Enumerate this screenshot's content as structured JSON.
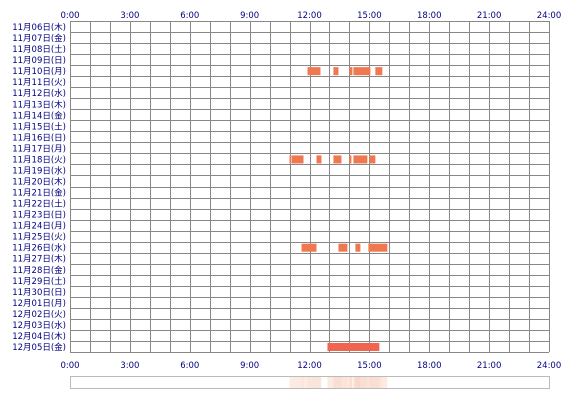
{
  "chart_data": {
    "type": "heatmap",
    "x_ticks": [
      "0:00",
      "3:00",
      "6:00",
      "9:00",
      "12:00",
      "15:00",
      "18:00",
      "21:00",
      "24:00"
    ],
    "xlim_hours": [
      0,
      24
    ],
    "x_grid_step_hours": 1,
    "rows": [
      "11月06日(木)",
      "11月07日(金)",
      "11月08日(土)",
      "11月09日(日)",
      "11月10日(月)",
      "11月11日(火)",
      "11月12日(水)",
      "11月13日(木)",
      "11月14日(金)",
      "11月15日(土)",
      "11月16日(日)",
      "11月17日(月)",
      "11月18日(火)",
      "11月19日(水)",
      "11月20日(木)",
      "11月21日(金)",
      "11月22日(土)",
      "11月23日(日)",
      "11月24日(月)",
      "11月25日(火)",
      "11月26日(水)",
      "11月27日(木)",
      "11月28日(金)",
      "11月29日(土)",
      "11月30日(日)",
      "12月01日(月)",
      "12月02日(火)",
      "12月03日(水)",
      "12月04日(木)",
      "12月05日(金)"
    ],
    "events": [
      {
        "row": 4,
        "start": 11.9,
        "end": 12.55
      },
      {
        "row": 4,
        "start": 13.2,
        "end": 13.45
      },
      {
        "row": 4,
        "start": 14.0,
        "end": 14.15
      },
      {
        "row": 4,
        "start": 14.2,
        "end": 15.05
      },
      {
        "row": 4,
        "start": 15.3,
        "end": 15.65
      },
      {
        "row": 12,
        "start": 11.0,
        "end": 11.05
      },
      {
        "row": 12,
        "start": 11.1,
        "end": 11.7
      },
      {
        "row": 12,
        "start": 12.35,
        "end": 12.6
      },
      {
        "row": 12,
        "start": 13.2,
        "end": 13.6
      },
      {
        "row": 12,
        "start": 14.0,
        "end": 14.1
      },
      {
        "row": 12,
        "start": 14.2,
        "end": 14.9
      },
      {
        "row": 12,
        "start": 15.0,
        "end": 15.3
      },
      {
        "row": 20,
        "start": 11.6,
        "end": 12.35
      },
      {
        "row": 20,
        "start": 13.45,
        "end": 13.9
      },
      {
        "row": 20,
        "start": 14.3,
        "end": 14.55
      },
      {
        "row": 20,
        "start": 14.95,
        "end": 15.9
      },
      {
        "row": 29,
        "start": 12.9,
        "end": 15.5
      }
    ],
    "summary_strip": [
      {
        "start": 11.0,
        "end": 11.1,
        "count": 1
      },
      {
        "start": 11.1,
        "end": 11.6,
        "count": 1
      },
      {
        "start": 11.6,
        "end": 11.7,
        "count": 2
      },
      {
        "start": 11.7,
        "end": 11.9,
        "count": 1
      },
      {
        "start": 11.9,
        "end": 12.35,
        "count": 2
      },
      {
        "start": 12.35,
        "end": 12.55,
        "count": 2
      },
      {
        "start": 12.55,
        "end": 12.6,
        "count": 1
      },
      {
        "start": 12.9,
        "end": 13.2,
        "count": 1
      },
      {
        "start": 13.2,
        "end": 13.45,
        "count": 3
      },
      {
        "start": 13.45,
        "end": 13.6,
        "count": 3
      },
      {
        "start": 13.6,
        "end": 13.9,
        "count": 2
      },
      {
        "start": 13.9,
        "end": 14.0,
        "count": 1
      },
      {
        "start": 14.0,
        "end": 14.15,
        "count": 3
      },
      {
        "start": 14.2,
        "end": 14.3,
        "count": 3
      },
      {
        "start": 14.3,
        "end": 14.55,
        "count": 4
      },
      {
        "start": 14.55,
        "end": 14.9,
        "count": 3
      },
      {
        "start": 14.9,
        "end": 15.0,
        "count": 2
      },
      {
        "start": 15.0,
        "end": 15.05,
        "count": 4
      },
      {
        "start": 15.05,
        "end": 15.3,
        "count": 3
      },
      {
        "start": 15.3,
        "end": 15.5,
        "count": 3
      },
      {
        "start": 15.5,
        "end": 15.65,
        "count": 2
      },
      {
        "start": 15.65,
        "end": 15.9,
        "count": 1
      }
    ],
    "colors": {
      "event": "#f07850",
      "event_last_row": "#f06450",
      "strip_base": "#f8d8c8",
      "grid": "#888888",
      "hour_grid": "#cccccc",
      "tick_text": "#000080",
      "row_text": "#000080"
    }
  }
}
